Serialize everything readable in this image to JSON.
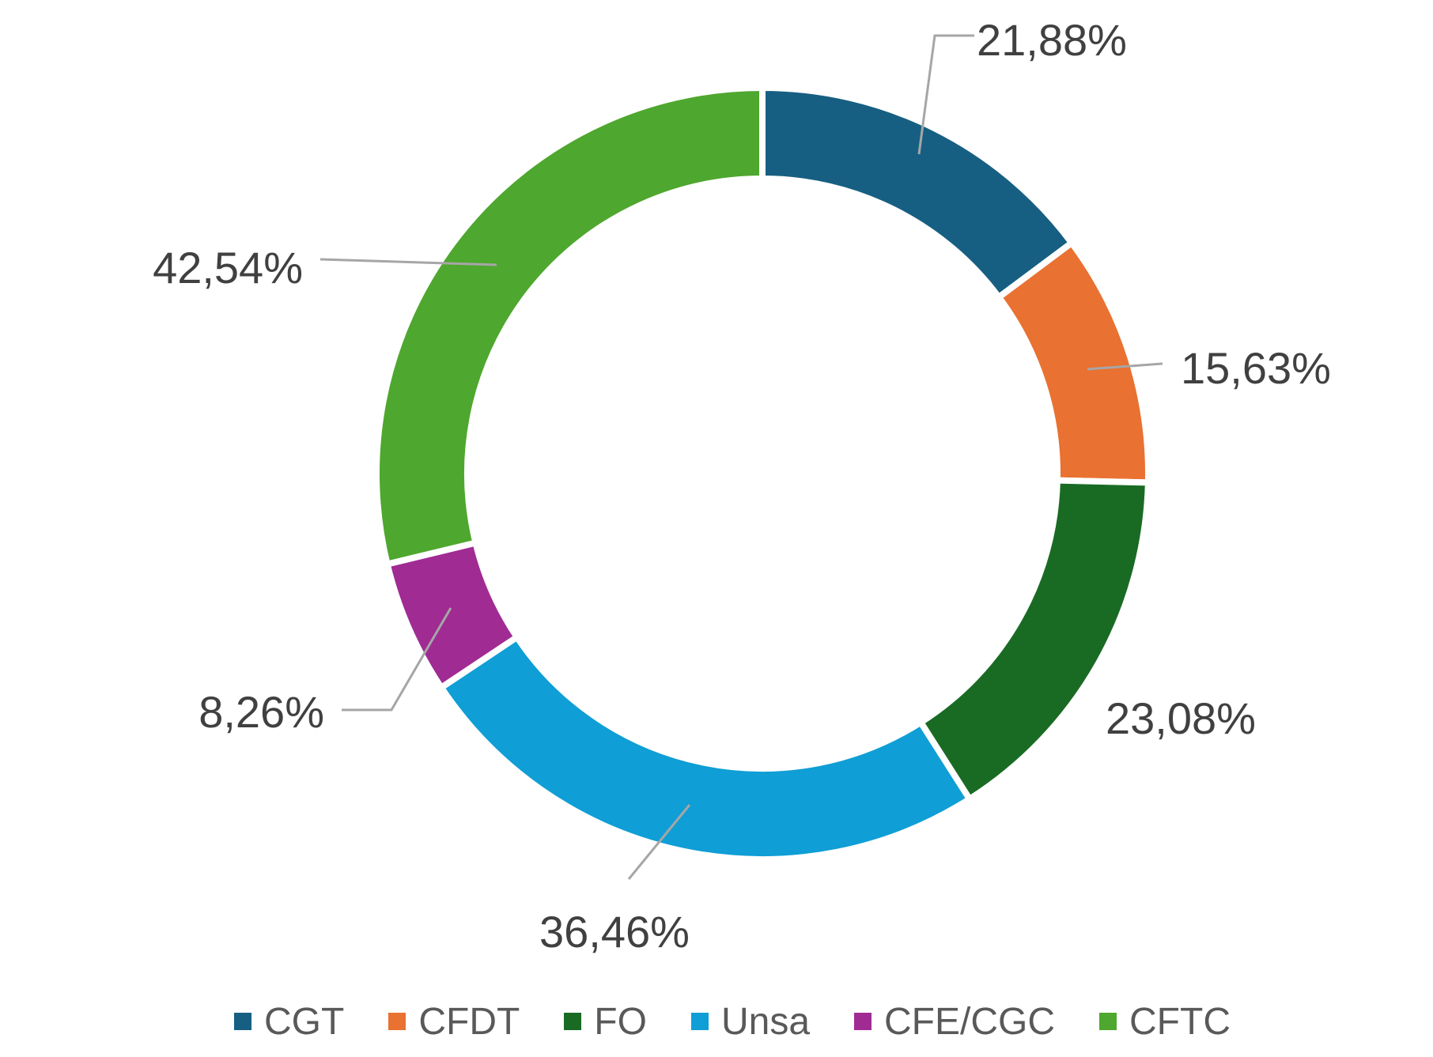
{
  "chart_data": {
    "type": "pie",
    "donut": true,
    "title": "",
    "legend_position": "bottom",
    "slices": [
      {
        "name": "CGT",
        "value": 21.88,
        "label": "21,88%",
        "color": "#175f82"
      },
      {
        "name": "CFDT",
        "value": 15.63,
        "label": "15,63%",
        "color": "#e97131"
      },
      {
        "name": "FO",
        "value": 23.08,
        "label": "23,08%",
        "color": "#196b24"
      },
      {
        "name": "Unsa",
        "value": 36.46,
        "label": "36,46%",
        "color": "#0f9ed5"
      },
      {
        "name": "CFE/CGC",
        "value": 8.26,
        "label": "8,26%",
        "color": "#a02b93"
      },
      {
        "name": "CFTC",
        "value": 42.54,
        "label": "42,54%",
        "color": "#4ea72e"
      }
    ]
  }
}
